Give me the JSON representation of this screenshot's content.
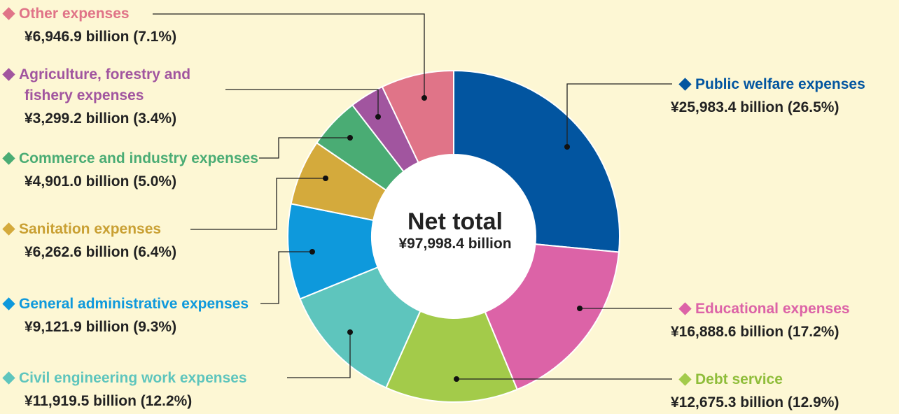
{
  "chart_data": {
    "type": "pie",
    "center_title": "Net total",
    "center_total": "¥97,998.4 billion",
    "slices": [
      {
        "name": "Public welfare expenses",
        "value": 25983.4,
        "percent": 26.5,
        "value_label": "¥25,983.4 billion (26.5%)",
        "color": "#0255a0"
      },
      {
        "name": "Educational expenses",
        "value": 16888.6,
        "percent": 17.2,
        "value_label": "¥16,888.6 billion (17.2%)",
        "color": "#dc63a7"
      },
      {
        "name": "Debt service",
        "value": 12675.3,
        "percent": 12.9,
        "value_label": "¥12,675.3 billion (12.9%)",
        "color": "#a3cb4a"
      },
      {
        "name": "Civil engineering work expenses",
        "value": 11919.5,
        "percent": 12.2,
        "value_label": "¥11,919.5 billion (12.2%)",
        "color": "#5ec5bd"
      },
      {
        "name": "General administrative expenses",
        "value": 9121.9,
        "percent": 9.3,
        "value_label": "¥9,121.9 billion (9.3%)",
        "color": "#0e99dc"
      },
      {
        "name": "Sanitation expenses",
        "value": 6262.6,
        "percent": 6.4,
        "value_label": "¥6,262.6 billion (6.4%)",
        "color": "#d4aa3c"
      },
      {
        "name": "Commerce and industry expenses",
        "value": 4901.0,
        "percent": 5.0,
        "value_label": "¥4,901.0 billion (5.0%)",
        "color": "#4aac74"
      },
      {
        "name": "Agriculture, forestry and fishery expenses",
        "name_lines": [
          "Agriculture, forestry and",
          "fishery expenses"
        ],
        "value": 3299.2,
        "percent": 3.4,
        "value_label": "¥3,299.2 billion (3.4%)",
        "color": "#a1559f"
      },
      {
        "name": "Other expenses",
        "value": 6946.9,
        "percent": 7.1,
        "value_label": "¥6,946.9 billion (7.1%)",
        "color": "#e07488"
      }
    ]
  }
}
